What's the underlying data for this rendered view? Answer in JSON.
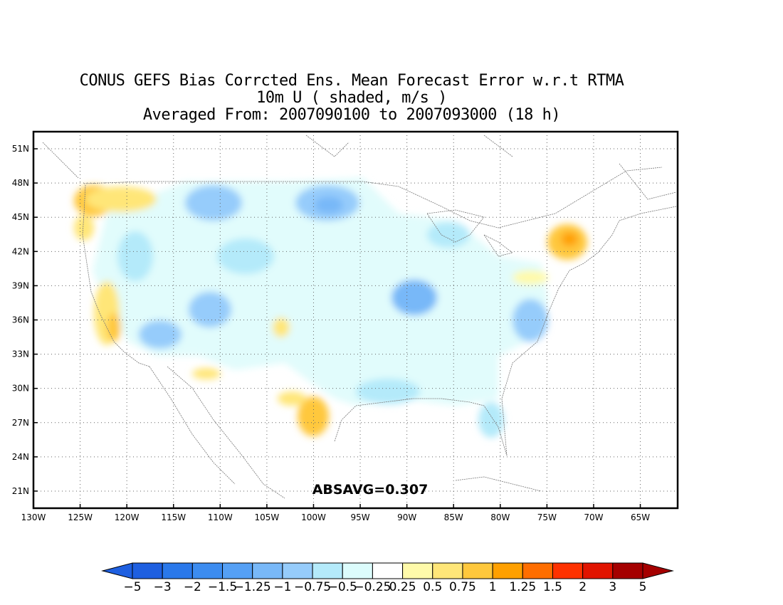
{
  "title": {
    "line1": "CONUS GEFS Bias Corrcted Ens. Mean Forecast Error w.r.t RTMA",
    "line2": "10m U ( shaded, m/s )",
    "line3": "Averaged From: 2007090100 to 2007093000 (18 h)"
  },
  "stat_label": "ABSAVG=0.307",
  "map": {
    "lon_range": [
      -130,
      -61
    ],
    "lat_range": [
      19.5,
      52.5
    ],
    "lon_ticks": [
      "130W",
      "125W",
      "120W",
      "115W",
      "110W",
      "105W",
      "100W",
      "95W",
      "90W",
      "85W",
      "80W",
      "75W",
      "70W",
      "65W"
    ],
    "lat_ticks": [
      "51N",
      "48N",
      "45N",
      "42N",
      "39N",
      "36N",
      "33N",
      "30N",
      "27N",
      "24N",
      "21N"
    ],
    "anomaly_regions": [
      {
        "desc": "Pacific Northwest coast positive",
        "lon": -123.5,
        "lat": 47,
        "value": 0.75
      },
      {
        "desc": "Northern California coast positive",
        "lon": -122.5,
        "lat": 37.5,
        "value": 0.5
      },
      {
        "desc": "New England positive max",
        "lon": -72.5,
        "lat": 43.5,
        "value": 1.25
      },
      {
        "desc": "South Texas positive",
        "lon": -99,
        "lat": 28,
        "value": 0.75
      },
      {
        "desc": "Northern Plains negative",
        "lon": -98,
        "lat": 47,
        "value": -1
      },
      {
        "desc": "Mid-Mississippi valley negative",
        "lon": -90,
        "lat": 38.5,
        "value": -1
      },
      {
        "desc": "Carolinas negative",
        "lon": -77,
        "lat": 35.5,
        "value": -0.75
      },
      {
        "desc": "Southwest negative",
        "lon": -115,
        "lat": 35,
        "value": -1
      }
    ]
  },
  "colorbar": {
    "labels": [
      "-5",
      "-3",
      "-2",
      "-1.5",
      "-1.25",
      "-1",
      "-0.75",
      "-0.5",
      "-0.25",
      "0.25",
      "0.5",
      "0.75",
      "1",
      "1.25",
      "1.5",
      "2",
      "3",
      "5"
    ],
    "colors": [
      "#1e5fe0",
      "#2a78ea",
      "#3c8cf0",
      "#55a0f5",
      "#78b8f8",
      "#96ccfb",
      "#b4eafa",
      "#dcfcfc",
      "#ffffff",
      "#fffaaa",
      "#ffe678",
      "#ffc83c",
      "#ffa000",
      "#ff6e00",
      "#ff3200",
      "#e11400",
      "#a50000"
    ],
    "left_arrow_color": "#1e5fe0",
    "right_arrow_color": "#a50000"
  }
}
